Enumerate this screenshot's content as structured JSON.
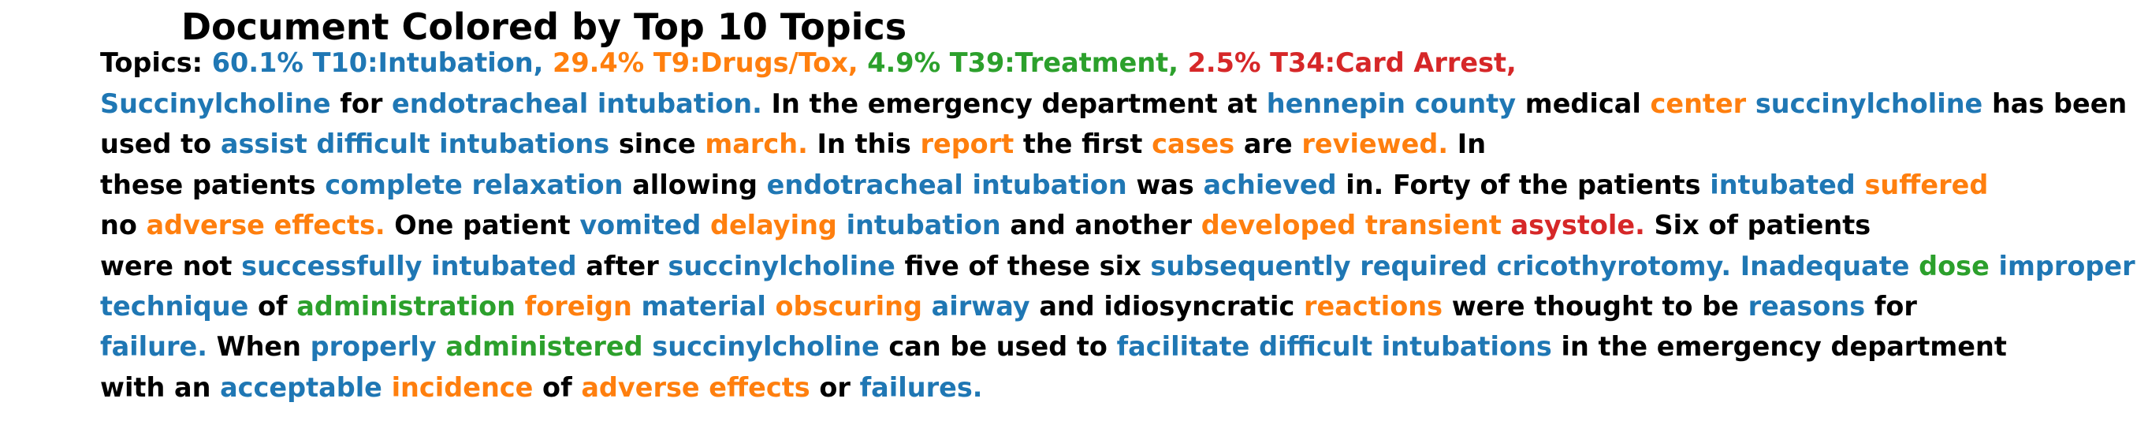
{
  "title": "Document Colored by Top 10 Topics",
  "colors": {
    "blue": "#1f77b4",
    "orange": "#ff7f0e",
    "green": "#2ca02c",
    "red": "#d62728",
    "black": "#000000"
  },
  "lines": [
    [
      {
        "t": "Topics: ",
        "c": "black"
      },
      {
        "t": "60.1% T10:Intubation,",
        "c": "blue"
      },
      {
        "t": " ",
        "c": "black"
      },
      {
        "t": "29.4% T9:Drugs/Tox,",
        "c": "orange"
      },
      {
        "t": " ",
        "c": "black"
      },
      {
        "t": "4.9% T39:Treatment,",
        "c": "green"
      },
      {
        "t": " ",
        "c": "black"
      },
      {
        "t": "2.5% T34:Card Arrest,",
        "c": "red"
      }
    ],
    [
      {
        "t": "Succinylcholine",
        "c": "blue"
      },
      {
        "t": " for ",
        "c": "black"
      },
      {
        "t": "endotracheal intubation.",
        "c": "blue"
      },
      {
        "t": " In the emergency department at ",
        "c": "black"
      },
      {
        "t": "hennepin county",
        "c": "blue"
      },
      {
        "t": " medical ",
        "c": "black"
      },
      {
        "t": "center",
        "c": "orange"
      },
      {
        "t": " ",
        "c": "black"
      },
      {
        "t": "succinylcholine",
        "c": "blue"
      },
      {
        "t": " has been",
        "c": "black"
      }
    ],
    [
      {
        "t": "used to ",
        "c": "black"
      },
      {
        "t": "assist difficult intubations",
        "c": "blue"
      },
      {
        "t": " since ",
        "c": "black"
      },
      {
        "t": "march.",
        "c": "orange"
      },
      {
        "t": " In this ",
        "c": "black"
      },
      {
        "t": "report",
        "c": "orange"
      },
      {
        "t": " the first ",
        "c": "black"
      },
      {
        "t": "cases",
        "c": "orange"
      },
      {
        "t": " are ",
        "c": "black"
      },
      {
        "t": "reviewed.",
        "c": "orange"
      },
      {
        "t": " In",
        "c": "black"
      }
    ],
    [
      {
        "t": "these patients ",
        "c": "black"
      },
      {
        "t": "complete relaxation",
        "c": "blue"
      },
      {
        "t": " allowing ",
        "c": "black"
      },
      {
        "t": "endotracheal intubation",
        "c": "blue"
      },
      {
        "t": " was ",
        "c": "black"
      },
      {
        "t": "achieved",
        "c": "blue"
      },
      {
        "t": " in. Forty of the patients ",
        "c": "black"
      },
      {
        "t": "intubated",
        "c": "blue"
      },
      {
        "t": " ",
        "c": "black"
      },
      {
        "t": "suffered",
        "c": "orange"
      }
    ],
    [
      {
        "t": "no ",
        "c": "black"
      },
      {
        "t": "adverse effects.",
        "c": "orange"
      },
      {
        "t": " One patient ",
        "c": "black"
      },
      {
        "t": "vomited",
        "c": "blue"
      },
      {
        "t": " ",
        "c": "black"
      },
      {
        "t": "delaying",
        "c": "orange"
      },
      {
        "t": " ",
        "c": "black"
      },
      {
        "t": "intubation",
        "c": "blue"
      },
      {
        "t": " and another ",
        "c": "black"
      },
      {
        "t": "developed transient",
        "c": "orange"
      },
      {
        "t": " ",
        "c": "black"
      },
      {
        "t": "asystole.",
        "c": "red"
      },
      {
        "t": " Six of patients",
        "c": "black"
      }
    ],
    [
      {
        "t": "were not ",
        "c": "black"
      },
      {
        "t": "successfully intubated",
        "c": "blue"
      },
      {
        "t": " after ",
        "c": "black"
      },
      {
        "t": "succinylcholine",
        "c": "blue"
      },
      {
        "t": " five of these six ",
        "c": "black"
      },
      {
        "t": "subsequently required cricothyrotomy. Inadequate",
        "c": "blue"
      },
      {
        "t": " ",
        "c": "black"
      },
      {
        "t": "dose",
        "c": "green"
      },
      {
        "t": " ",
        "c": "black"
      },
      {
        "t": "improper",
        "c": "blue"
      }
    ],
    [
      {
        "t": "technique",
        "c": "blue"
      },
      {
        "t": " of ",
        "c": "black"
      },
      {
        "t": "administration",
        "c": "green"
      },
      {
        "t": " ",
        "c": "black"
      },
      {
        "t": "foreign",
        "c": "orange"
      },
      {
        "t": " ",
        "c": "black"
      },
      {
        "t": "material",
        "c": "blue"
      },
      {
        "t": " ",
        "c": "black"
      },
      {
        "t": "obscuring",
        "c": "orange"
      },
      {
        "t": " ",
        "c": "black"
      },
      {
        "t": "airway",
        "c": "blue"
      },
      {
        "t": " and idiosyncratic ",
        "c": "black"
      },
      {
        "t": "reactions",
        "c": "orange"
      },
      {
        "t": " were thought to be ",
        "c": "black"
      },
      {
        "t": "reasons",
        "c": "blue"
      },
      {
        "t": " for",
        "c": "black"
      }
    ],
    [
      {
        "t": "failure.",
        "c": "blue"
      },
      {
        "t": " When ",
        "c": "black"
      },
      {
        "t": "properly",
        "c": "blue"
      },
      {
        "t": " ",
        "c": "black"
      },
      {
        "t": "administered",
        "c": "green"
      },
      {
        "t": " ",
        "c": "black"
      },
      {
        "t": "succinylcholine",
        "c": "blue"
      },
      {
        "t": " can be used to ",
        "c": "black"
      },
      {
        "t": "facilitate difficult intubations",
        "c": "blue"
      },
      {
        "t": " in the emergency department",
        "c": "black"
      }
    ],
    [
      {
        "t": "with an ",
        "c": "black"
      },
      {
        "t": "acceptable",
        "c": "blue"
      },
      {
        "t": " ",
        "c": "black"
      },
      {
        "t": "incidence",
        "c": "orange"
      },
      {
        "t": " of ",
        "c": "black"
      },
      {
        "t": "adverse effects",
        "c": "orange"
      },
      {
        "t": " or ",
        "c": "black"
      },
      {
        "t": "failures.",
        "c": "blue"
      }
    ]
  ]
}
